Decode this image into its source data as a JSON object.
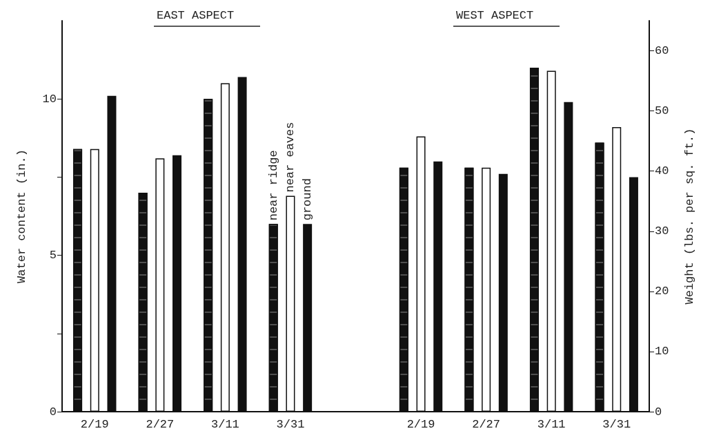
{
  "chart_data": {
    "type": "bar",
    "categories": [
      "2/19",
      "2/27",
      "3/11",
      "3/31",
      null,
      "2/19",
      "2/27",
      "3/11",
      "3/31"
    ],
    "series": [
      {
        "name": "near ridge",
        "color": "#111111",
        "values": [
          8.4,
          7.0,
          10.0,
          6.0,
          null,
          7.8,
          7.8,
          11.0,
          8.6
        ]
      },
      {
        "name": "near eaves",
        "color": "#ffffff",
        "values": [
          8.4,
          8.1,
          10.5,
          6.9,
          null,
          8.8,
          7.8,
          10.9,
          9.1
        ]
      },
      {
        "name": "ground",
        "color": "#111111",
        "values": [
          10.1,
          8.2,
          10.7,
          6.0,
          null,
          8.0,
          7.6,
          9.9,
          7.5
        ]
      }
    ],
    "ylabel": "Water content (in.)",
    "y2label": "Weight (lbs. per sq. ft.)",
    "ylim": [
      0,
      12.5
    ],
    "yticks": [
      0,
      {
        "value": 2.5,
        "label": null
      },
      5,
      {
        "value": 7.5,
        "label": null
      },
      10
    ],
    "y2lim": [
      0,
      65
    ],
    "y2ticks": [
      0,
      10,
      20,
      30,
      40,
      50,
      60
    ],
    "annotations": [
      "EAST ASPECT",
      "WEST ASPECT"
    ],
    "grid": false,
    "legend": false
  }
}
